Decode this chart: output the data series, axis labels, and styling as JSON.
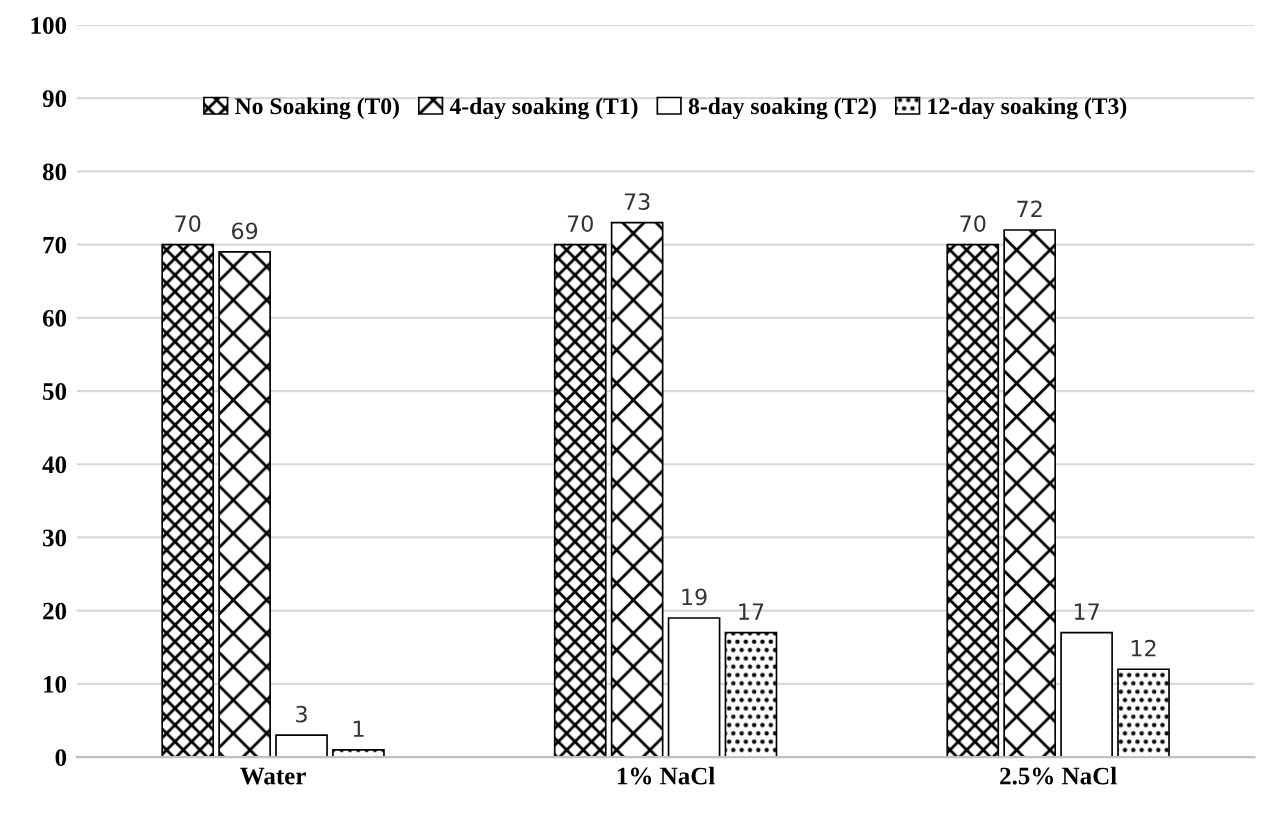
{
  "chart_data": {
    "type": "bar",
    "categories": [
      "Water",
      "1% NaCl",
      "2.5% NaCl"
    ],
    "series": [
      {
        "name": "No Soaking (T0)",
        "color": "#000000",
        "values": [
          70,
          70,
          70
        ]
      },
      {
        "name": "4-day soaking (T1)",
        "color": "#000000",
        "values": [
          69,
          73,
          72
        ]
      },
      {
        "name": "8-day soaking (T2)",
        "color": "#000000",
        "values": [
          3,
          19,
          17
        ]
      },
      {
        "name": "12-day soaking (T3)",
        "color": "#000000",
        "values": [
          1,
          17,
          12
        ]
      }
    ],
    "ylim": [
      0,
      100
    ],
    "yticks": [
      0,
      10,
      20,
      30,
      40,
      50,
      60,
      70,
      80,
      90,
      100
    ],
    "grid": "y",
    "legend": "top",
    "data_labels": true
  }
}
